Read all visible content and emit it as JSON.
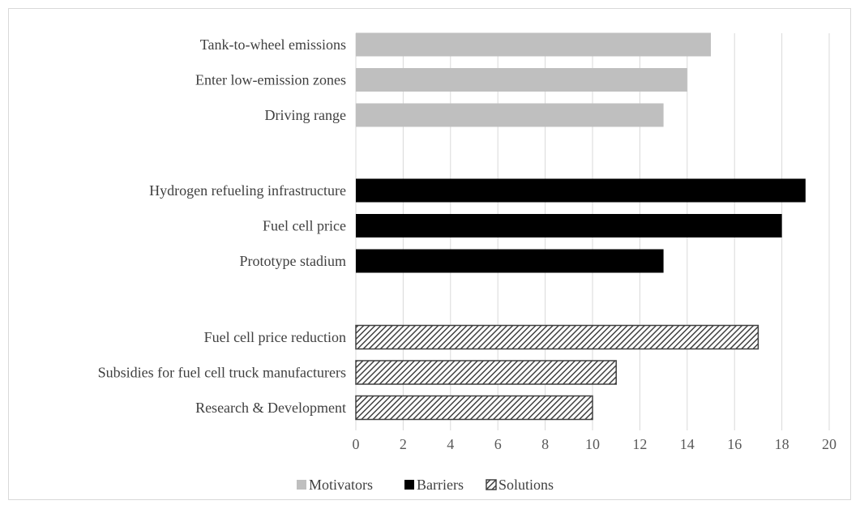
{
  "chart_data": {
    "type": "bar",
    "orientation": "horizontal",
    "xlim": [
      0,
      20
    ],
    "x_ticks": [
      0,
      2,
      4,
      6,
      8,
      10,
      12,
      14,
      16,
      18,
      20
    ],
    "grid": true,
    "legend_position": "bottom",
    "groups": [
      {
        "name": "Motivators",
        "color": "#bfbfbf",
        "pattern": "solid",
        "categories": [
          "Tank-to-wheel emissions",
          "Enter low-emission zones",
          "Driving range"
        ],
        "values": [
          15,
          14,
          13
        ]
      },
      {
        "name": "Barriers",
        "color": "#000000",
        "pattern": "solid",
        "categories": [
          "Hydrogen refueling infrastructure",
          "Fuel cell price",
          "Prototype stadium"
        ],
        "values": [
          19,
          18,
          13
        ]
      },
      {
        "name": "Solutions",
        "color": "#404040",
        "pattern": "diagonal-hatch",
        "categories": [
          "Fuel cell price reduction",
          "Subsidies for fuel cell truck manufacturers",
          "Research & Development"
        ],
        "values": [
          17,
          11,
          10
        ]
      }
    ],
    "legend": [
      "Motivators",
      "Barriers",
      "Solutions"
    ]
  }
}
